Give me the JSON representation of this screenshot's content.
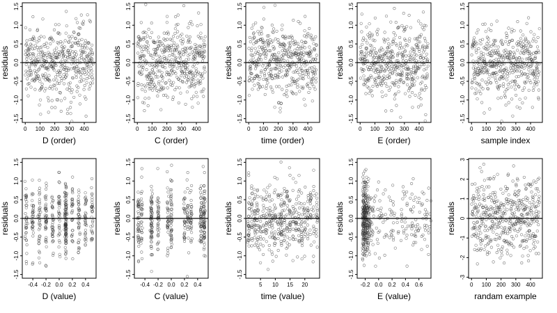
{
  "chart_data": [
    {
      "type": "scatter",
      "xlabel": "D (order)",
      "ylabel": "residuals",
      "xlim": [
        -20,
        480
      ],
      "ylim": [
        -1.6,
        1.6
      ],
      "xticks": [
        0,
        100,
        200,
        300,
        400
      ],
      "xtick_labels": [
        "0",
        "100",
        "200",
        "300",
        "400"
      ],
      "yticks": [
        -1.5,
        -1.0,
        -0.5,
        0.0,
        0.5,
        1.0,
        1.5
      ],
      "ytick_labels": [
        "-1.5",
        "-1.0",
        "-0.5",
        "0.0",
        "0.5",
        "1.0",
        "1.5"
      ],
      "reference_line_y": 0,
      "n_points": 460,
      "x_distribution": "index 1-460",
      "y_sd": 0.5,
      "grid": false,
      "marker": "open circle",
      "marker_color": "#333333",
      "line_color": "#000000"
    },
    {
      "type": "scatter",
      "xlabel": "C (order)",
      "ylabel": "residuals",
      "xlim": [
        -20,
        480
      ],
      "ylim": [
        -1.6,
        1.6
      ],
      "xticks": [
        0,
        100,
        200,
        300,
        400
      ],
      "xtick_labels": [
        "0",
        "100",
        "200",
        "300",
        "400"
      ],
      "yticks": [
        -1.5,
        -1.0,
        -0.5,
        0.0,
        0.5,
        1.0,
        1.5
      ],
      "ytick_labels": [
        "-1.5",
        "-1.0",
        "-0.5",
        "0.0",
        "0.5",
        "1.0",
        "1.5"
      ],
      "reference_line_y": 0,
      "n_points": 460,
      "x_distribution": "index 1-460",
      "y_sd": 0.5,
      "grid": false,
      "marker": "open circle",
      "marker_color": "#333333",
      "line_color": "#000000"
    },
    {
      "type": "scatter",
      "xlabel": "time (order)",
      "ylabel": "residuals",
      "xlim": [
        -20,
        480
      ],
      "ylim": [
        -1.6,
        1.6
      ],
      "xticks": [
        0,
        100,
        200,
        300,
        400
      ],
      "xtick_labels": [
        "0",
        "100",
        "200",
        "300",
        "400"
      ],
      "yticks": [
        -1.5,
        -1.0,
        -0.5,
        0.0,
        0.5,
        1.0,
        1.5
      ],
      "ytick_labels": [
        "-1.5",
        "-1.0",
        "-0.5",
        "0.0",
        "0.5",
        "1.0",
        "1.5"
      ],
      "reference_line_y": 0,
      "n_points": 460,
      "x_distribution": "index 1-460",
      "y_sd": 0.5,
      "grid": false,
      "marker": "open circle",
      "marker_color": "#333333",
      "line_color": "#000000"
    },
    {
      "type": "scatter",
      "xlabel": "E (order)",
      "ylabel": "residuals",
      "xlim": [
        -20,
        480
      ],
      "ylim": [
        -1.6,
        1.6
      ],
      "xticks": [
        0,
        100,
        200,
        300,
        400
      ],
      "xtick_labels": [
        "0",
        "100",
        "200",
        "300",
        "400"
      ],
      "yticks": [
        -1.5,
        -1.0,
        -0.5,
        0.0,
        0.5,
        1.0,
        1.5
      ],
      "ytick_labels": [
        "-1.5",
        "-1.0",
        "-0.5",
        "0.0",
        "0.5",
        "1.0",
        "1.5"
      ],
      "reference_line_y": 0,
      "n_points": 460,
      "x_distribution": "index 1-460",
      "y_sd": 0.5,
      "grid": false,
      "marker": "open circle",
      "marker_color": "#333333",
      "line_color": "#000000"
    },
    {
      "type": "scatter",
      "xlabel": "sample index",
      "ylabel": "residuals",
      "xlim": [
        -20,
        480
      ],
      "ylim": [
        -1.6,
        1.6
      ],
      "xticks": [
        0,
        100,
        200,
        300,
        400
      ],
      "xtick_labels": [
        "0",
        "100",
        "200",
        "300",
        "400"
      ],
      "yticks": [
        -1.5,
        -1.0,
        -0.5,
        0.0,
        0.5,
        1.0,
        1.5
      ],
      "ytick_labels": [
        "-1.5",
        "-1.0",
        "-0.5",
        "0.0",
        "0.5",
        "1.0",
        "1.5"
      ],
      "reference_line_y": 0,
      "n_points": 460,
      "x_distribution": "index 1-460",
      "y_sd": 0.5,
      "grid": false,
      "marker": "open circle",
      "marker_color": "#333333",
      "line_color": "#000000"
    },
    {
      "type": "scatter",
      "xlabel": "D (value)",
      "ylabel": "residuals",
      "xlim": [
        -0.56,
        0.56
      ],
      "ylim": [
        -1.6,
        1.6
      ],
      "xticks": [
        -0.4,
        -0.2,
        0.0,
        0.2,
        0.4
      ],
      "xtick_labels": [
        "-0.4",
        "-0.2",
        "0.0",
        "0.2",
        "0.4"
      ],
      "yticks": [
        -1.5,
        -1.0,
        -0.5,
        0.0,
        0.5,
        1.0,
        1.5
      ],
      "ytick_labels": [
        "-1.5",
        "-1.0",
        "-0.5",
        "0.0",
        "0.5",
        "1.0",
        "1.5"
      ],
      "reference_line_y": 0,
      "n_points": 460,
      "x_distribution": "discrete levels around -0.5 to 0.5, dense near 0.1",
      "y_sd": 0.5,
      "grid": false,
      "x_levels": [
        -0.5,
        -0.4,
        -0.3,
        -0.2,
        -0.1,
        0.0,
        0.1,
        0.1,
        0.1,
        0.2,
        0.3,
        0.4,
        0.5
      ],
      "marker": "open circle",
      "marker_color": "#333333",
      "line_color": "#000000"
    },
    {
      "type": "scatter",
      "xlabel": "C (value)",
      "ylabel": "residuals",
      "xlim": [
        -0.56,
        0.56
      ],
      "ylim": [
        -1.6,
        1.6
      ],
      "xticks": [
        -0.4,
        -0.2,
        0.0,
        0.2,
        0.4
      ],
      "xtick_labels": [
        "-0.4",
        "-0.2",
        "0.0",
        "0.2",
        "0.4"
      ],
      "yticks": [
        -1.5,
        -1.0,
        -0.5,
        0.0,
        0.5,
        1.0,
        1.5
      ],
      "ytick_labels": [
        "-1.5",
        "-1.0",
        "-0.5",
        "0.0",
        "0.5",
        "1.0",
        "1.5"
      ],
      "reference_line_y": 0,
      "n_points": 460,
      "x_distribution": "discrete columns at about -0.5, -0.3, 0, 0.2, 0.3, 0.5",
      "y_sd": 0.5,
      "grid": false,
      "x_levels": [
        -0.5,
        -0.45,
        -0.3,
        -0.3,
        -0.2,
        -0.05,
        0.0,
        0.2,
        0.25,
        0.3,
        0.45,
        0.5,
        0.5
      ],
      "marker": "open circle",
      "marker_color": "#333333",
      "line_color": "#000000"
    },
    {
      "type": "scatter",
      "xlabel": "time (value)",
      "ylabel": "residuals",
      "xlim": [
        0,
        25
      ],
      "ylim": [
        -1.6,
        1.6
      ],
      "xticks": [
        5,
        10,
        15,
        20
      ],
      "xtick_labels": [
        "5",
        "10",
        "15",
        "20"
      ],
      "yticks": [
        -1.5,
        -1.0,
        -0.5,
        0.0,
        0.5,
        1.0,
        1.5
      ],
      "ytick_labels": [
        "-1.5",
        "-1.0",
        "-0.5",
        "0.0",
        "0.5",
        "1.0",
        "1.5"
      ],
      "reference_line_y": 0,
      "n_points": 460,
      "x_distribution": "integer hours 1-24",
      "y_sd": 0.5,
      "grid": false,
      "x_levels": [
        1,
        2,
        3,
        4,
        5,
        6,
        7,
        8,
        9,
        10,
        11,
        12,
        12,
        13,
        14,
        15,
        16,
        17,
        18,
        19,
        20,
        21,
        22,
        23,
        24
      ],
      "marker": "open circle",
      "marker_color": "#333333",
      "line_color": "#000000"
    },
    {
      "type": "scatter",
      "xlabel": "E (value)",
      "ylabel": "residuals",
      "xlim": [
        -0.32,
        0.78
      ],
      "ylim": [
        -1.6,
        1.6
      ],
      "xticks": [
        -0.2,
        0.0,
        0.2,
        0.4,
        0.6
      ],
      "xtick_labels": [
        "-0.2",
        "0.0",
        "0.2",
        "0.4",
        "0.6"
      ],
      "yticks": [
        -1.5,
        -1.0,
        -0.5,
        0.0,
        0.5,
        1.0,
        1.5
      ],
      "ytick_labels": [
        "-1.5",
        "-1.0",
        "-0.5",
        "0.0",
        "0.5",
        "1.0",
        "1.5"
      ],
      "reference_line_y": 0,
      "n_points": 460,
      "x_distribution": "right-skewed, dense near -0.2",
      "y_sd": 0.5,
      "grid": false,
      "marker": "open circle",
      "marker_color": "#333333",
      "line_color": "#000000"
    },
    {
      "type": "scatter",
      "xlabel": "randam example",
      "ylabel": "residuals",
      "xlim": [
        -20,
        480
      ],
      "ylim": [
        -3.05,
        3.05
      ],
      "xticks": [
        0,
        100,
        200,
        300,
        400
      ],
      "xtick_labels": [
        "0",
        "100",
        "200",
        "300",
        "400"
      ],
      "yticks": [
        -3,
        -2,
        -1,
        0,
        1,
        2,
        3
      ],
      "ytick_labels": [
        "-3",
        "-2",
        "-1",
        "0",
        "1",
        "2",
        "3"
      ],
      "reference_line_y": 0,
      "n_points": 460,
      "x_distribution": "index 1-460",
      "y_sd": 1.0,
      "grid": false,
      "marker": "open circle",
      "marker_color": "#333333",
      "line_color": "#000000"
    }
  ]
}
